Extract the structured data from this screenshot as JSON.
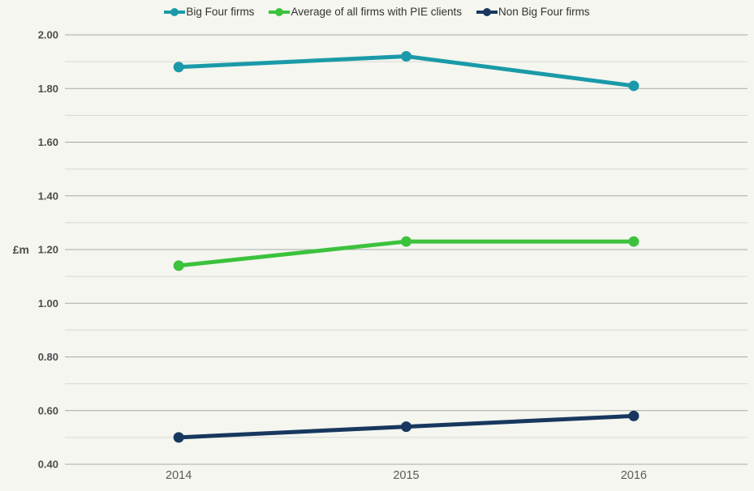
{
  "chart": {
    "background_color": "#f4f6ef",
    "legend": {
      "items": [
        "Big Four firms",
        "Average of all firms with PIE clients",
        "Non Big Four firms"
      ]
    }
  },
  "chart_data": {
    "type": "line",
    "title": "",
    "xlabel": "",
    "ylabel": "£m",
    "categories": [
      "2014",
      "2015",
      "2016"
    ],
    "series": [
      {
        "name": "Big Four firms",
        "color": "#1a9aa8",
        "values": [
          1.88,
          1.92,
          1.81
        ]
      },
      {
        "name": "Average of all firms with PIE clients",
        "color": "#3cc23c",
        "values": [
          1.14,
          1.23,
          1.23
        ]
      },
      {
        "name": "Non Big Four firms",
        "color": "#17375e",
        "values": [
          0.5,
          0.54,
          0.58
        ]
      }
    ],
    "ylim": [
      0.4,
      2.0
    ],
    "ytick_major_step": 0.2,
    "ytick_minor_step": 0.1,
    "ytick_label_format": "2dp",
    "grid": true,
    "gridline_major_color": "#a9a9a9",
    "gridline_minor_color": "#d7dbd2",
    "legend_position": "top-center",
    "marker": "circle",
    "line_width": 5,
    "marker_radius": 6.5
  }
}
